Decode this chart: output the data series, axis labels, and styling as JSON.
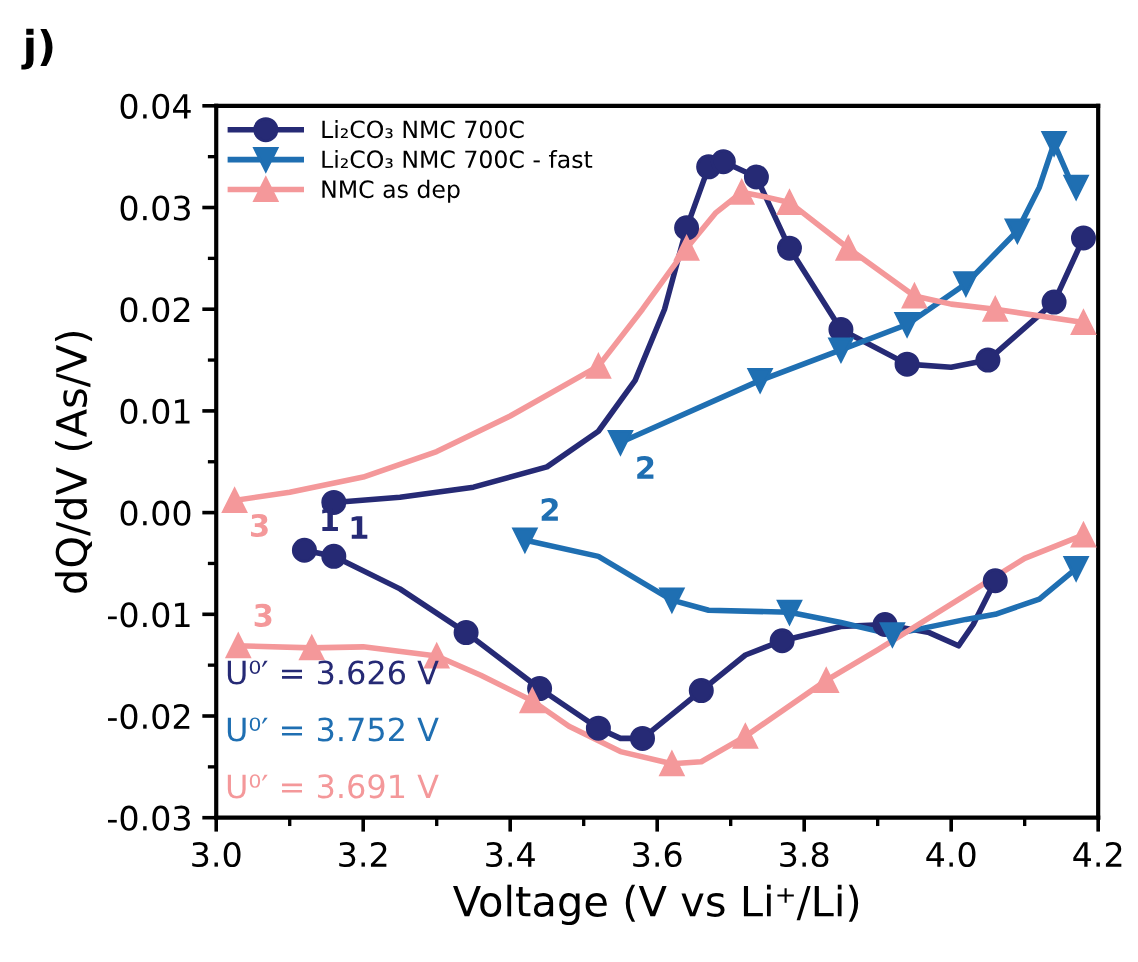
{
  "chart_data": {
    "type": "line",
    "title": "j)",
    "xlabel": "Voltage (V vs Li⁺/Li)",
    "ylabel": "dQ/dV (As/V)",
    "xlim": [
      3.0,
      4.2
    ],
    "xticks": [
      {
        "value": 3.0,
        "label": "3.0"
      },
      {
        "value": 3.2,
        "label": "3.2"
      },
      {
        "value": 3.4,
        "label": "3.4"
      },
      {
        "value": 3.6,
        "label": "3.6"
      },
      {
        "value": 3.8,
        "label": "3.8"
      },
      {
        "value": 4.0,
        "label": "4.0"
      },
      {
        "value": 4.2,
        "label": "4.2"
      }
    ],
    "ylim": [
      -0.03,
      0.04
    ],
    "yticks": [
      {
        "value": -0.03,
        "label": "-0.03"
      },
      {
        "value": -0.02,
        "label": "-0.02"
      },
      {
        "value": -0.01,
        "label": "-0.01"
      },
      {
        "value": 0,
        "label": "0.00"
      },
      {
        "value": 0.01,
        "label": "0.01"
      },
      {
        "value": 0.02,
        "label": "0.02"
      },
      {
        "value": 0.03,
        "label": "0.03"
      },
      {
        "value": 0.04,
        "label": "0.04"
      }
    ],
    "grid": false,
    "legend": "top left",
    "line_style": "solid",
    "series": [
      {
        "type": "scatter",
        "name": "Li₂CO₃ NMC 700C",
        "color": "#262a75",
        "marker": "circle",
        "x": [
          3.16,
          3.64,
          3.67,
          3.69,
          3.735,
          3.78,
          3.85,
          3.94,
          4.05,
          4.14,
          4.18,
          3.12,
          3.16,
          3.34,
          3.44,
          3.52,
          3.58,
          3.66,
          3.77,
          3.91,
          4.06
        ],
        "values": [
          0.001,
          0.028,
          0.034,
          0.0345,
          0.033,
          0.026,
          0.018,
          0.0146,
          0.015,
          0.0207,
          0.027,
          -0.0037,
          -0.0043,
          -0.0118,
          -0.0173,
          -0.0212,
          -0.0222,
          -0.0175,
          -0.0126,
          -0.011,
          -0.0067
        ]
      },
      {
        "type": "scatter",
        "name": "Li₂CO₃ NMC 700C - fast",
        "color": "#1f6fb2",
        "marker": "triangle",
        "x": [
          3.55,
          3.74,
          3.85,
          3.94,
          4.02,
          4.09,
          4.14,
          4.17,
          4.17,
          3.92,
          3.78,
          3.62,
          3.42
        ],
        "values": [
          0.0069,
          0.013,
          0.016,
          0.0185,
          0.0225,
          0.0277,
          0.0363,
          0.032,
          -0.0055,
          -0.012,
          -0.0098,
          -0.0086,
          -0.0027
        ]
      },
      {
        "type": "scatter",
        "name": "NMC as dep",
        "color": "#f4989a",
        "marker": "triangle",
        "x": [
          3.025,
          3.52,
          3.64,
          3.715,
          3.78,
          3.86,
          3.95,
          4.06,
          4.18,
          4.18,
          3.83,
          3.72,
          3.62,
          3.43,
          3.3,
          3.13,
          3.03
        ],
        "values": [
          0.0012,
          0.0144,
          0.026,
          0.0315,
          0.0305,
          0.026,
          0.0213,
          0.02,
          0.0187,
          -0.0022,
          -0.0165,
          -0.022,
          -0.0247,
          -0.0185,
          -0.0141,
          -0.0133,
          -0.0131
        ]
      },
      {
        "color": "#262a75",
        "x": [
          3.16,
          3.25,
          3.35,
          3.45,
          3.52,
          3.57,
          3.61,
          3.64,
          3.67,
          3.69,
          3.735,
          3.78,
          3.85,
          3.94,
          4.0,
          4.05,
          4.14,
          4.18,
          null,
          3.12,
          3.16,
          3.25,
          3.34,
          3.44,
          3.52,
          3.55,
          3.58,
          3.66,
          3.72,
          3.77,
          3.85,
          3.91,
          3.97,
          4.01,
          4.03,
          4.06
        ],
        "values": [
          0.001,
          0.0015,
          0.0025,
          0.0045,
          0.008,
          0.013,
          0.02,
          0.028,
          0.034,
          0.0345,
          0.033,
          0.026,
          0.018,
          0.0146,
          0.0143,
          0.015,
          0.0207,
          0.027,
          null,
          -0.0037,
          -0.0043,
          -0.0075,
          -0.0118,
          -0.0173,
          -0.0212,
          -0.0222,
          -0.0222,
          -0.0175,
          -0.014,
          -0.0126,
          -0.0112,
          -0.011,
          -0.0118,
          -0.0131,
          -0.011,
          -0.0067
        ]
      },
      {
        "color": "#1f6fb2",
        "x": [
          3.55,
          3.74,
          3.85,
          3.94,
          4.02,
          4.09,
          4.12,
          4.14,
          4.16,
          4.17,
          null,
          4.17,
          4.12,
          4.06,
          4.02,
          3.92,
          3.85,
          3.78,
          3.67,
          3.62,
          3.52,
          3.42
        ],
        "values": [
          0.0069,
          0.013,
          0.016,
          0.0185,
          0.0225,
          0.0277,
          0.032,
          0.0363,
          0.033,
          0.032,
          null,
          -0.0055,
          -0.0085,
          -0.01,
          -0.0105,
          -0.012,
          -0.0108,
          -0.0098,
          -0.0096,
          -0.0086,
          -0.0043,
          -0.0027
        ]
      },
      {
        "color": "#f4989a",
        "x": [
          3.025,
          3.1,
          3.2,
          3.3,
          3.4,
          3.52,
          3.58,
          3.64,
          3.68,
          3.715,
          3.75,
          3.78,
          3.86,
          3.95,
          4.0,
          4.06,
          4.18,
          null,
          4.18,
          4.1,
          4.0,
          3.9,
          3.83,
          3.72,
          3.66,
          3.62,
          3.55,
          3.48,
          3.43,
          3.36,
          3.3,
          3.2,
          3.13,
          3.03
        ],
        "values": [
          0.0012,
          0.002,
          0.0035,
          0.006,
          0.0095,
          0.0144,
          0.02,
          0.026,
          0.0295,
          0.0315,
          0.031,
          0.0305,
          0.026,
          0.0213,
          0.0205,
          0.02,
          0.0187,
          null,
          -0.0022,
          -0.0045,
          -0.009,
          -0.0135,
          -0.0165,
          -0.022,
          -0.0245,
          -0.0247,
          -0.0235,
          -0.021,
          -0.0185,
          -0.016,
          -0.0141,
          -0.0132,
          -0.0133,
          -0.0131
        ]
      }
    ],
    "annotations": [
      {
        "text": "1",
        "x": 3.16,
        "y": 0.001
      },
      {
        "text": "1",
        "x": 3.12,
        "y": -0.0037
      },
      {
        "text": "2",
        "x": 3.55,
        "y": 0.0069
      },
      {
        "text": "2",
        "x": 3.42,
        "y": -0.0027
      },
      {
        "text": "3",
        "x": 3.025,
        "y": 0.0012
      },
      {
        "text": "3",
        "x": 3.03,
        "y": -0.0131
      },
      "U⁰′ = 3.626 V",
      "U⁰′ = 3.752 V",
      "U⁰′ = 3.691 V"
    ]
  }
}
